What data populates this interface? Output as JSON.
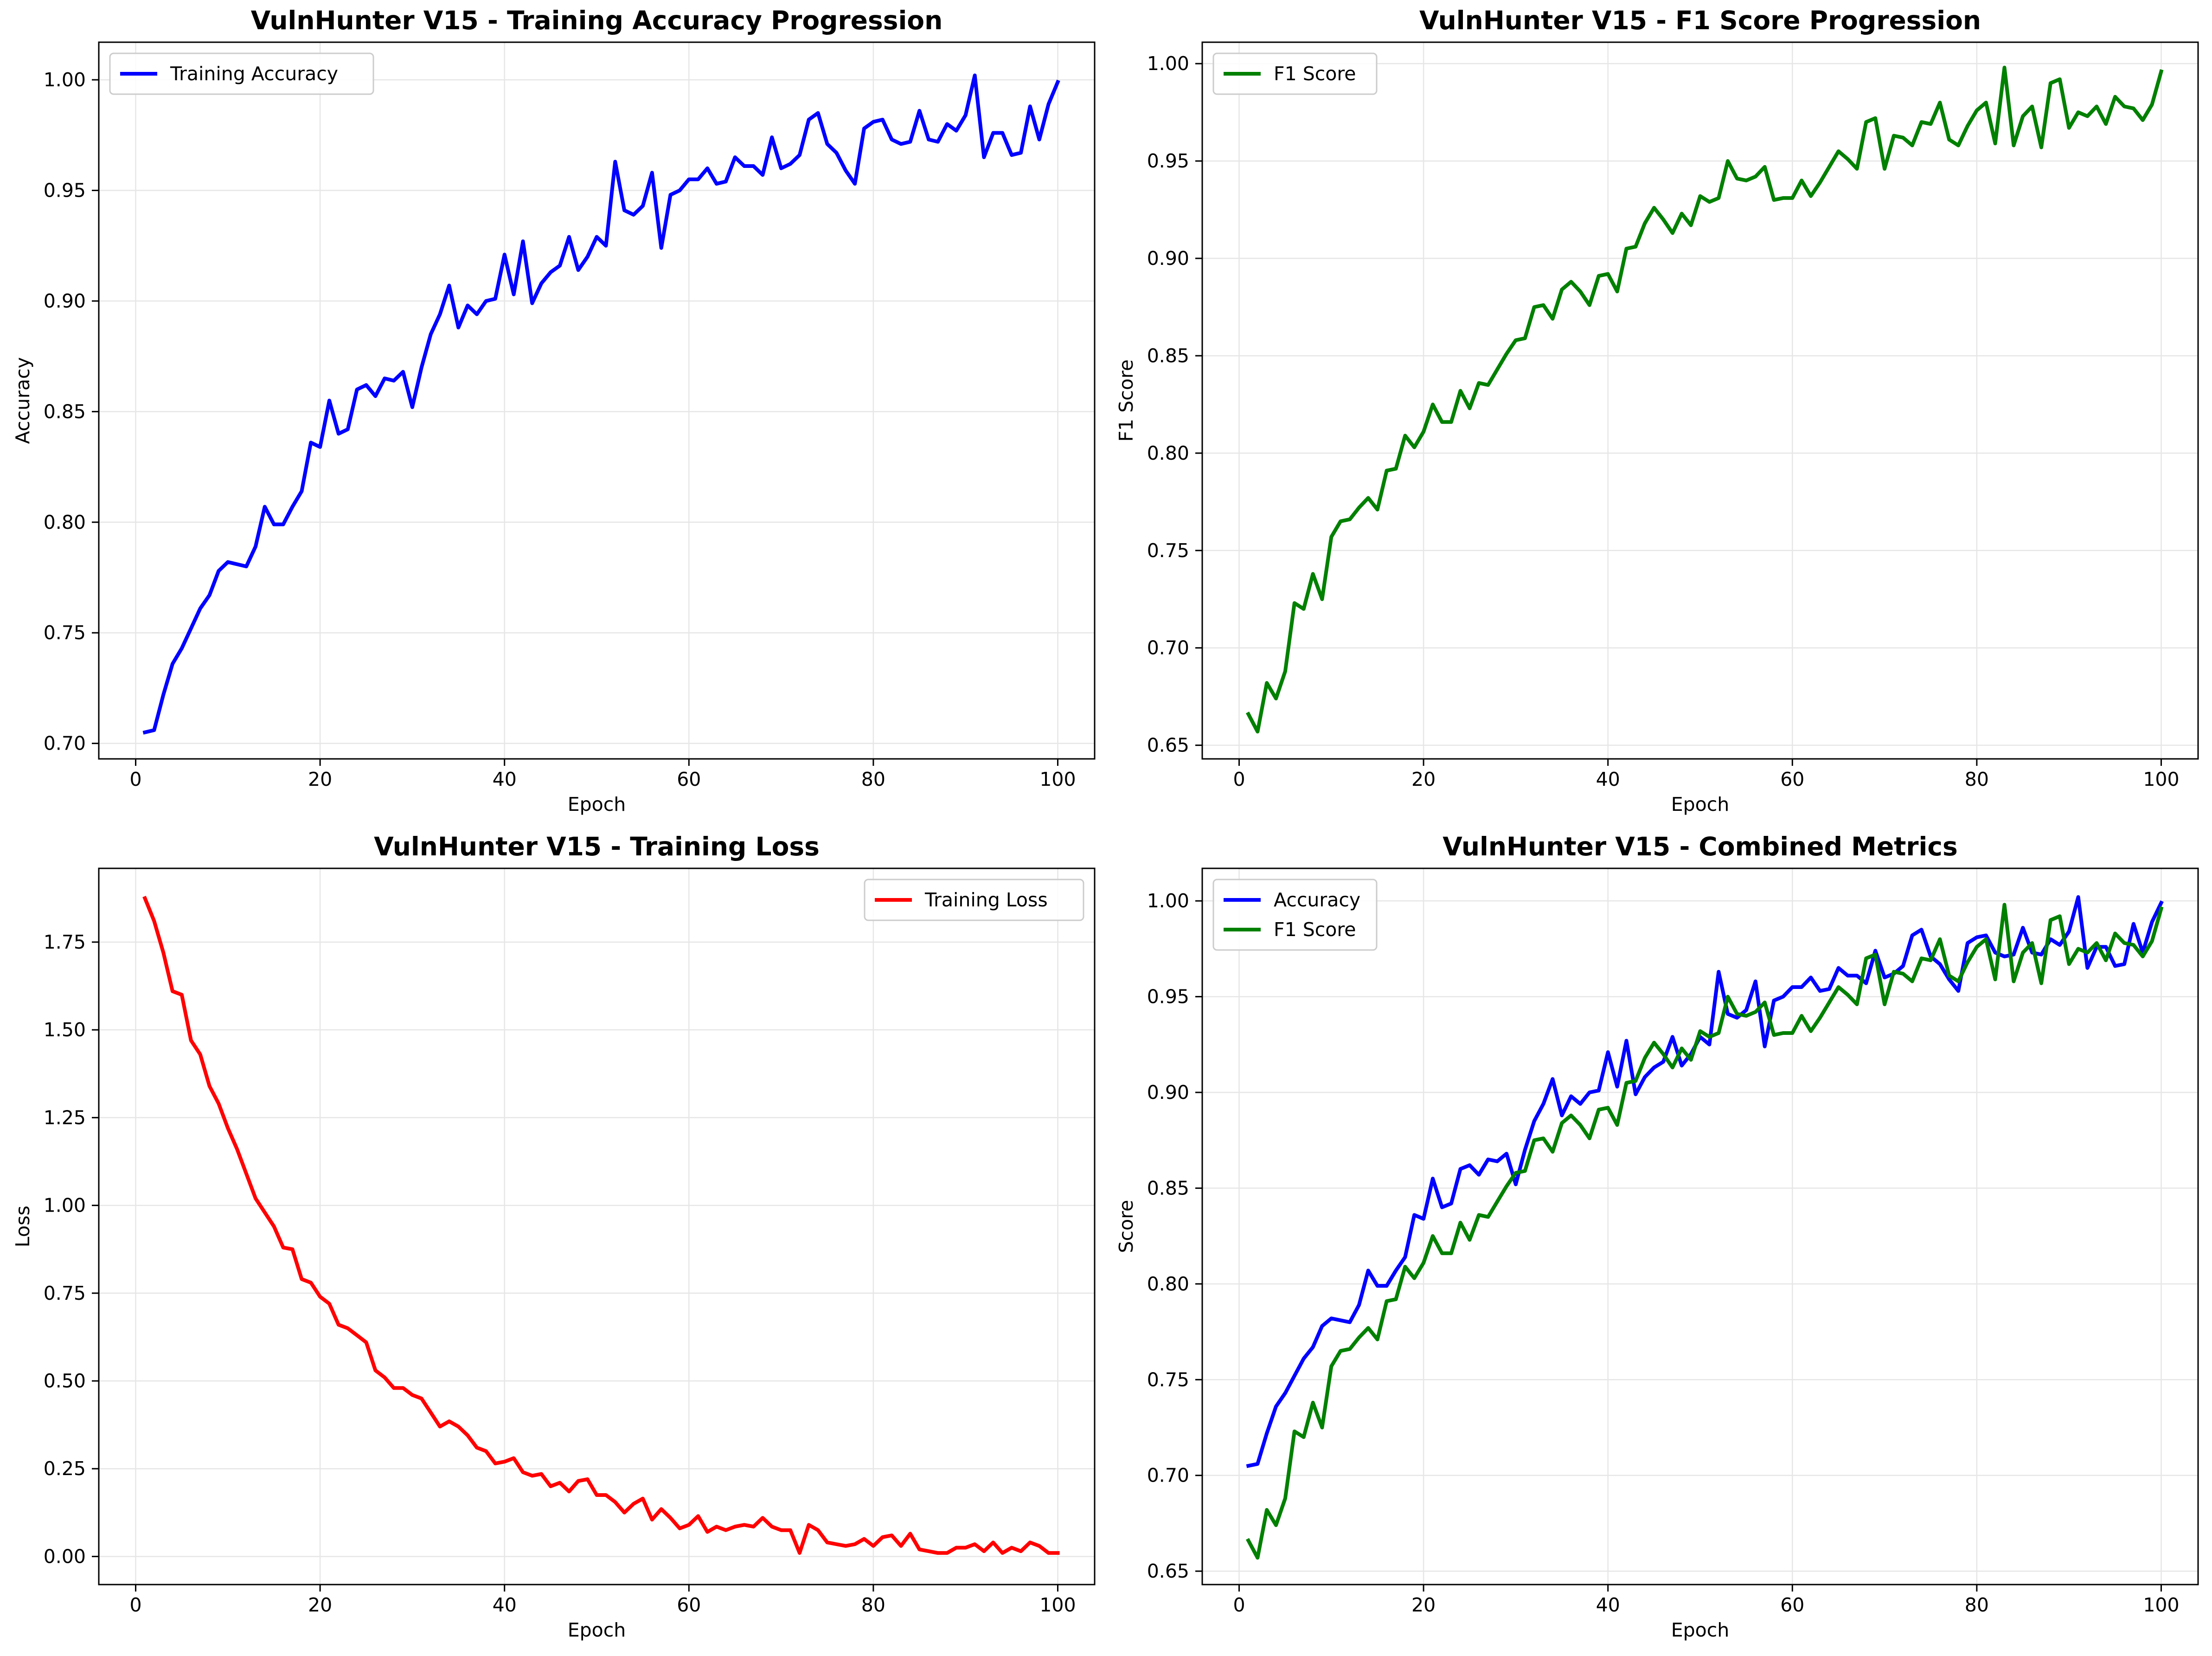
{
  "chart_data": [
    {
      "type": "line",
      "title": "VulnHunter V15 - Training Accuracy Progression",
      "xlabel": "Epoch",
      "ylabel": "Accuracy",
      "xlim": [
        -4,
        104
      ],
      "ylim": [
        0.693,
        1.017
      ],
      "xticks": [
        0,
        20,
        40,
        60,
        80,
        100
      ],
      "yticks": [
        0.7,
        0.75,
        0.8,
        0.85,
        0.9,
        0.95,
        1.0
      ],
      "ytick_labels": [
        "0.70",
        "0.75",
        "0.80",
        "0.85",
        "0.90",
        "0.95",
        "1.00"
      ],
      "grid": true,
      "legend_position": "top-left",
      "x": "1-100",
      "series": [
        {
          "name": "Training Accuracy",
          "color": "#0000ff",
          "values": [
            0.705,
            0.706,
            0.722,
            0.736,
            0.743,
            0.752,
            0.761,
            0.767,
            0.778,
            0.782,
            0.781,
            0.78,
            0.789,
            0.807,
            0.799,
            0.799,
            0.807,
            0.814,
            0.836,
            0.834,
            0.855,
            0.84,
            0.842,
            0.86,
            0.862,
            0.857,
            0.865,
            0.864,
            0.868,
            0.852,
            0.87,
            0.885,
            0.894,
            0.907,
            0.888,
            0.898,
            0.894,
            0.9,
            0.901,
            0.921,
            0.903,
            0.927,
            0.899,
            0.908,
            0.913,
            0.916,
            0.929,
            0.914,
            0.92,
            0.929,
            0.925,
            0.963,
            0.941,
            0.939,
            0.943,
            0.958,
            0.924,
            0.948,
            0.95,
            0.955,
            0.955,
            0.96,
            0.953,
            0.954,
            0.965,
            0.961,
            0.961,
            0.957,
            0.974,
            0.96,
            0.962,
            0.966,
            0.982,
            0.985,
            0.971,
            0.967,
            0.959,
            0.953,
            0.978,
            0.981,
            0.982,
            0.973,
            0.971,
            0.972,
            0.986,
            0.973,
            0.972,
            0.98,
            0.977,
            0.984,
            1.002,
            0.965,
            0.976,
            0.976,
            0.966,
            0.967,
            0.988,
            0.973,
            0.989,
            0.999
          ]
        }
      ]
    },
    {
      "type": "line",
      "title": "VulnHunter V15 - F1 Score Progression",
      "xlabel": "Epoch",
      "ylabel": "F1 Score",
      "xlim": [
        -4,
        104
      ],
      "ylim": [
        0.643,
        1.011
      ],
      "xticks": [
        0,
        20,
        40,
        60,
        80,
        100
      ],
      "yticks": [
        0.65,
        0.7,
        0.75,
        0.8,
        0.85,
        0.9,
        0.95,
        1.0
      ],
      "ytick_labels": [
        "0.65",
        "0.70",
        "0.75",
        "0.80",
        "0.85",
        "0.90",
        "0.95",
        "1.00"
      ],
      "grid": true,
      "legend_position": "top-left",
      "x": "1-100",
      "series": [
        {
          "name": "F1 Score",
          "color": "#008000",
          "values": [
            0.666,
            0.657,
            0.682,
            0.674,
            0.688,
            0.723,
            0.72,
            0.738,
            0.725,
            0.757,
            0.765,
            0.766,
            0.772,
            0.777,
            0.771,
            0.791,
            0.792,
            0.809,
            0.803,
            0.811,
            0.825,
            0.816,
            0.816,
            0.832,
            0.823,
            0.836,
            0.835,
            0.843,
            0.851,
            0.858,
            0.859,
            0.875,
            0.876,
            0.869,
            0.884,
            0.888,
            0.883,
            0.876,
            0.891,
            0.892,
            0.883,
            0.905,
            0.906,
            0.918,
            0.926,
            0.92,
            0.913,
            0.923,
            0.917,
            0.932,
            0.929,
            0.931,
            0.95,
            0.941,
            0.94,
            0.942,
            0.947,
            0.93,
            0.931,
            0.931,
            0.94,
            0.932,
            0.939,
            0.947,
            0.955,
            0.951,
            0.946,
            0.97,
            0.972,
            0.946,
            0.963,
            0.962,
            0.958,
            0.97,
            0.969,
            0.98,
            0.961,
            0.958,
            0.968,
            0.976,
            0.98,
            0.959,
            0.998,
            0.958,
            0.973,
            0.978,
            0.957,
            0.99,
            0.992,
            0.967,
            0.975,
            0.973,
            0.978,
            0.969,
            0.983,
            0.978,
            0.977,
            0.971,
            0.979,
            0.996
          ]
        }
      ]
    },
    {
      "type": "line",
      "title": "VulnHunter V15 - Training Loss",
      "xlabel": "Epoch",
      "ylabel": "Loss",
      "xlim": [
        -4,
        104
      ],
      "ylim": [
        -0.08,
        1.96
      ],
      "xticks": [
        0,
        20,
        40,
        60,
        80,
        100
      ],
      "yticks": [
        0.0,
        0.25,
        0.5,
        0.75,
        1.0,
        1.25,
        1.5,
        1.75
      ],
      "ytick_labels": [
        "0.00",
        "0.25",
        "0.50",
        "0.75",
        "1.00",
        "1.25",
        "1.50",
        "1.75"
      ],
      "grid": true,
      "legend_position": "top-right",
      "x": "1-100",
      "series": [
        {
          "name": "Training Loss",
          "color": "#ff0000",
          "values": [
            1.875,
            1.81,
            1.72,
            1.61,
            1.6,
            1.47,
            1.43,
            1.34,
            1.29,
            1.22,
            1.16,
            1.09,
            1.02,
            0.98,
            0.94,
            0.88,
            0.875,
            0.79,
            0.78,
            0.74,
            0.72,
            0.66,
            0.65,
            0.63,
            0.61,
            0.53,
            0.51,
            0.48,
            0.48,
            0.46,
            0.45,
            0.41,
            0.37,
            0.385,
            0.37,
            0.345,
            0.31,
            0.3,
            0.265,
            0.27,
            0.28,
            0.24,
            0.23,
            0.235,
            0.2,
            0.21,
            0.185,
            0.215,
            0.22,
            0.175,
            0.175,
            0.155,
            0.125,
            0.15,
            0.165,
            0.105,
            0.135,
            0.11,
            0.08,
            0.09,
            0.115,
            0.07,
            0.085,
            0.075,
            0.085,
            0.09,
            0.085,
            0.11,
            0.085,
            0.075,
            0.075,
            0.01,
            0.09,
            0.075,
            0.04,
            0.035,
            0.03,
            0.035,
            0.05,
            0.03,
            0.055,
            0.06,
            0.03,
            0.065,
            0.02,
            0.015,
            0.01,
            0.01,
            0.025,
            0.025,
            0.035,
            0.015,
            0.04,
            0.01,
            0.025,
            0.015,
            0.04,
            0.03,
            0.01,
            0.01
          ]
        }
      ]
    },
    {
      "type": "line",
      "title": "VulnHunter V15 - Combined Metrics",
      "xlabel": "Epoch",
      "ylabel": "Score",
      "xlim": [
        -4,
        104
      ],
      "ylim": [
        0.643,
        1.017
      ],
      "xticks": [
        0,
        20,
        40,
        60,
        80,
        100
      ],
      "yticks": [
        0.65,
        0.7,
        0.75,
        0.8,
        0.85,
        0.9,
        0.95,
        1.0
      ],
      "ytick_labels": [
        "0.65",
        "0.70",
        "0.75",
        "0.80",
        "0.85",
        "0.90",
        "0.95",
        "1.00"
      ],
      "grid": true,
      "legend_position": "top-left",
      "x": "1-100",
      "series": [
        {
          "name": "Accuracy",
          "color": "#0000ff",
          "same_values_as": "Training Accuracy"
        },
        {
          "name": "F1 Score",
          "color": "#008000",
          "same_values_as": "F1 Score"
        }
      ]
    }
  ]
}
